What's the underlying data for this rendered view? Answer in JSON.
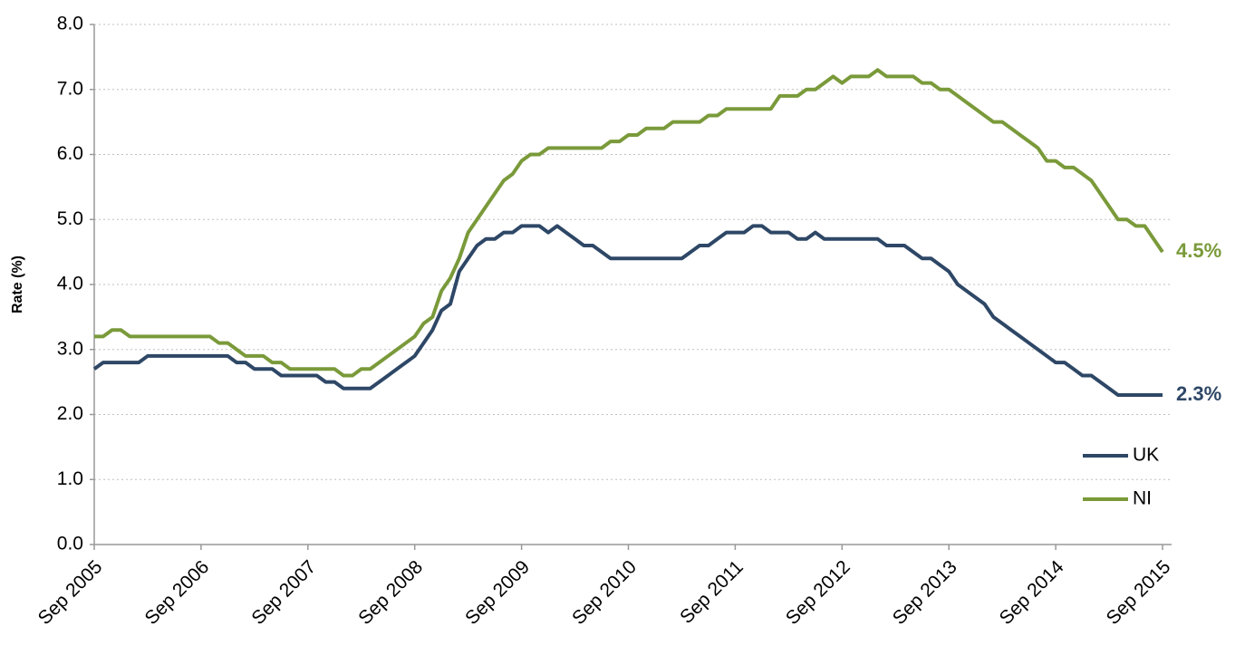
{
  "chart_data": {
    "type": "line",
    "y_label": "Rate (%)",
    "categories": [
      "Sep 2005",
      null,
      null,
      null,
      null,
      null,
      null,
      null,
      null,
      null,
      null,
      null,
      "Sep 2006",
      null,
      null,
      null,
      null,
      null,
      null,
      null,
      null,
      null,
      null,
      null,
      "Sep 2007",
      null,
      null,
      null,
      null,
      null,
      null,
      null,
      null,
      null,
      null,
      null,
      "Sep 2008",
      null,
      null,
      null,
      null,
      null,
      null,
      null,
      null,
      null,
      null,
      null,
      "Sep 2009",
      null,
      null,
      null,
      null,
      null,
      null,
      null,
      null,
      null,
      null,
      null,
      "Sep 2010",
      null,
      null,
      null,
      null,
      null,
      null,
      null,
      null,
      null,
      null,
      null,
      "Sep 2011",
      null,
      null,
      null,
      null,
      null,
      null,
      null,
      null,
      null,
      null,
      null,
      "Sep 2012",
      null,
      null,
      null,
      null,
      null,
      null,
      null,
      null,
      null,
      null,
      null,
      "Sep 2013",
      null,
      null,
      null,
      null,
      null,
      null,
      null,
      null,
      null,
      null,
      null,
      "Sep 2014",
      null,
      null,
      null,
      null,
      null,
      null,
      null,
      null,
      null,
      null,
      null,
      "Sep 2015"
    ],
    "series": [
      {
        "name": "UK",
        "color": "#2e4766",
        "end_label": "2.3%",
        "values": [
          2.7,
          2.8,
          2.8,
          2.8,
          2.8,
          2.8,
          2.9,
          2.9,
          2.9,
          2.9,
          2.9,
          2.9,
          2.9,
          2.9,
          2.9,
          2.9,
          2.8,
          2.8,
          2.7,
          2.7,
          2.7,
          2.6,
          2.6,
          2.6,
          2.6,
          2.6,
          2.5,
          2.5,
          2.4,
          2.4,
          2.4,
          2.4,
          2.5,
          2.6,
          2.7,
          2.8,
          2.9,
          3.1,
          3.3,
          3.6,
          3.7,
          4.2,
          4.4,
          4.6,
          4.7,
          4.7,
          4.8,
          4.8,
          4.9,
          4.9,
          4.9,
          4.8,
          4.9,
          4.8,
          4.7,
          4.6,
          4.6,
          4.5,
          4.4,
          4.4,
          4.4,
          4.4,
          4.4,
          4.4,
          4.4,
          4.4,
          4.4,
          4.5,
          4.6,
          4.6,
          4.7,
          4.8,
          4.8,
          4.8,
          4.9,
          4.9,
          4.8,
          4.8,
          4.8,
          4.7,
          4.7,
          4.8,
          4.7,
          4.7,
          4.7,
          4.7,
          4.7,
          4.7,
          4.7,
          4.6,
          4.6,
          4.6,
          4.5,
          4.4,
          4.4,
          4.3,
          4.2,
          4.0,
          3.9,
          3.8,
          3.7,
          3.5,
          3.4,
          3.3,
          3.2,
          3.1,
          3.0,
          2.9,
          2.8,
          2.8,
          2.7,
          2.6,
          2.6,
          2.5,
          2.4,
          2.3,
          2.3,
          2.3,
          2.3,
          2.3,
          2.3
        ]
      },
      {
        "name": "NI",
        "color": "#7a9a3a",
        "end_label": "4.5%",
        "values": [
          3.2,
          3.2,
          3.3,
          3.3,
          3.2,
          3.2,
          3.2,
          3.2,
          3.2,
          3.2,
          3.2,
          3.2,
          3.2,
          3.2,
          3.1,
          3.1,
          3.0,
          2.9,
          2.9,
          2.9,
          2.8,
          2.8,
          2.7,
          2.7,
          2.7,
          2.7,
          2.7,
          2.7,
          2.6,
          2.6,
          2.7,
          2.7,
          2.8,
          2.9,
          3.0,
          3.1,
          3.2,
          3.4,
          3.5,
          3.9,
          4.1,
          4.4,
          4.8,
          5.0,
          5.2,
          5.4,
          5.6,
          5.7,
          5.9,
          6.0,
          6.0,
          6.1,
          6.1,
          6.1,
          6.1,
          6.1,
          6.1,
          6.1,
          6.2,
          6.2,
          6.3,
          6.3,
          6.4,
          6.4,
          6.4,
          6.5,
          6.5,
          6.5,
          6.5,
          6.6,
          6.6,
          6.7,
          6.7,
          6.7,
          6.7,
          6.7,
          6.7,
          6.9,
          6.9,
          6.9,
          7.0,
          7.0,
          7.1,
          7.2,
          7.1,
          7.2,
          7.2,
          7.2,
          7.3,
          7.2,
          7.2,
          7.2,
          7.2,
          7.1,
          7.1,
          7.0,
          7.0,
          6.9,
          6.8,
          6.7,
          6.6,
          6.5,
          6.5,
          6.4,
          6.3,
          6.2,
          6.1,
          5.9,
          5.9,
          5.8,
          5.8,
          5.7,
          5.6,
          5.4,
          5.2,
          5.0,
          5.0,
          4.9,
          4.9,
          4.7,
          4.5
        ]
      }
    ],
    "ylim": [
      0,
      8
    ],
    "yticks": [
      {
        "value": 0,
        "label": "0.0"
      },
      {
        "value": 1,
        "label": "1.0"
      },
      {
        "value": 2,
        "label": "2.0"
      },
      {
        "value": 3,
        "label": "3.0"
      },
      {
        "value": 4,
        "label": "4.0"
      },
      {
        "value": 5,
        "label": "5.0"
      },
      {
        "value": 6,
        "label": "6.0"
      },
      {
        "value": 7,
        "label": "7.0"
      },
      {
        "value": 8,
        "label": "8.0"
      }
    ],
    "grid": true,
    "legend": "lower right"
  }
}
